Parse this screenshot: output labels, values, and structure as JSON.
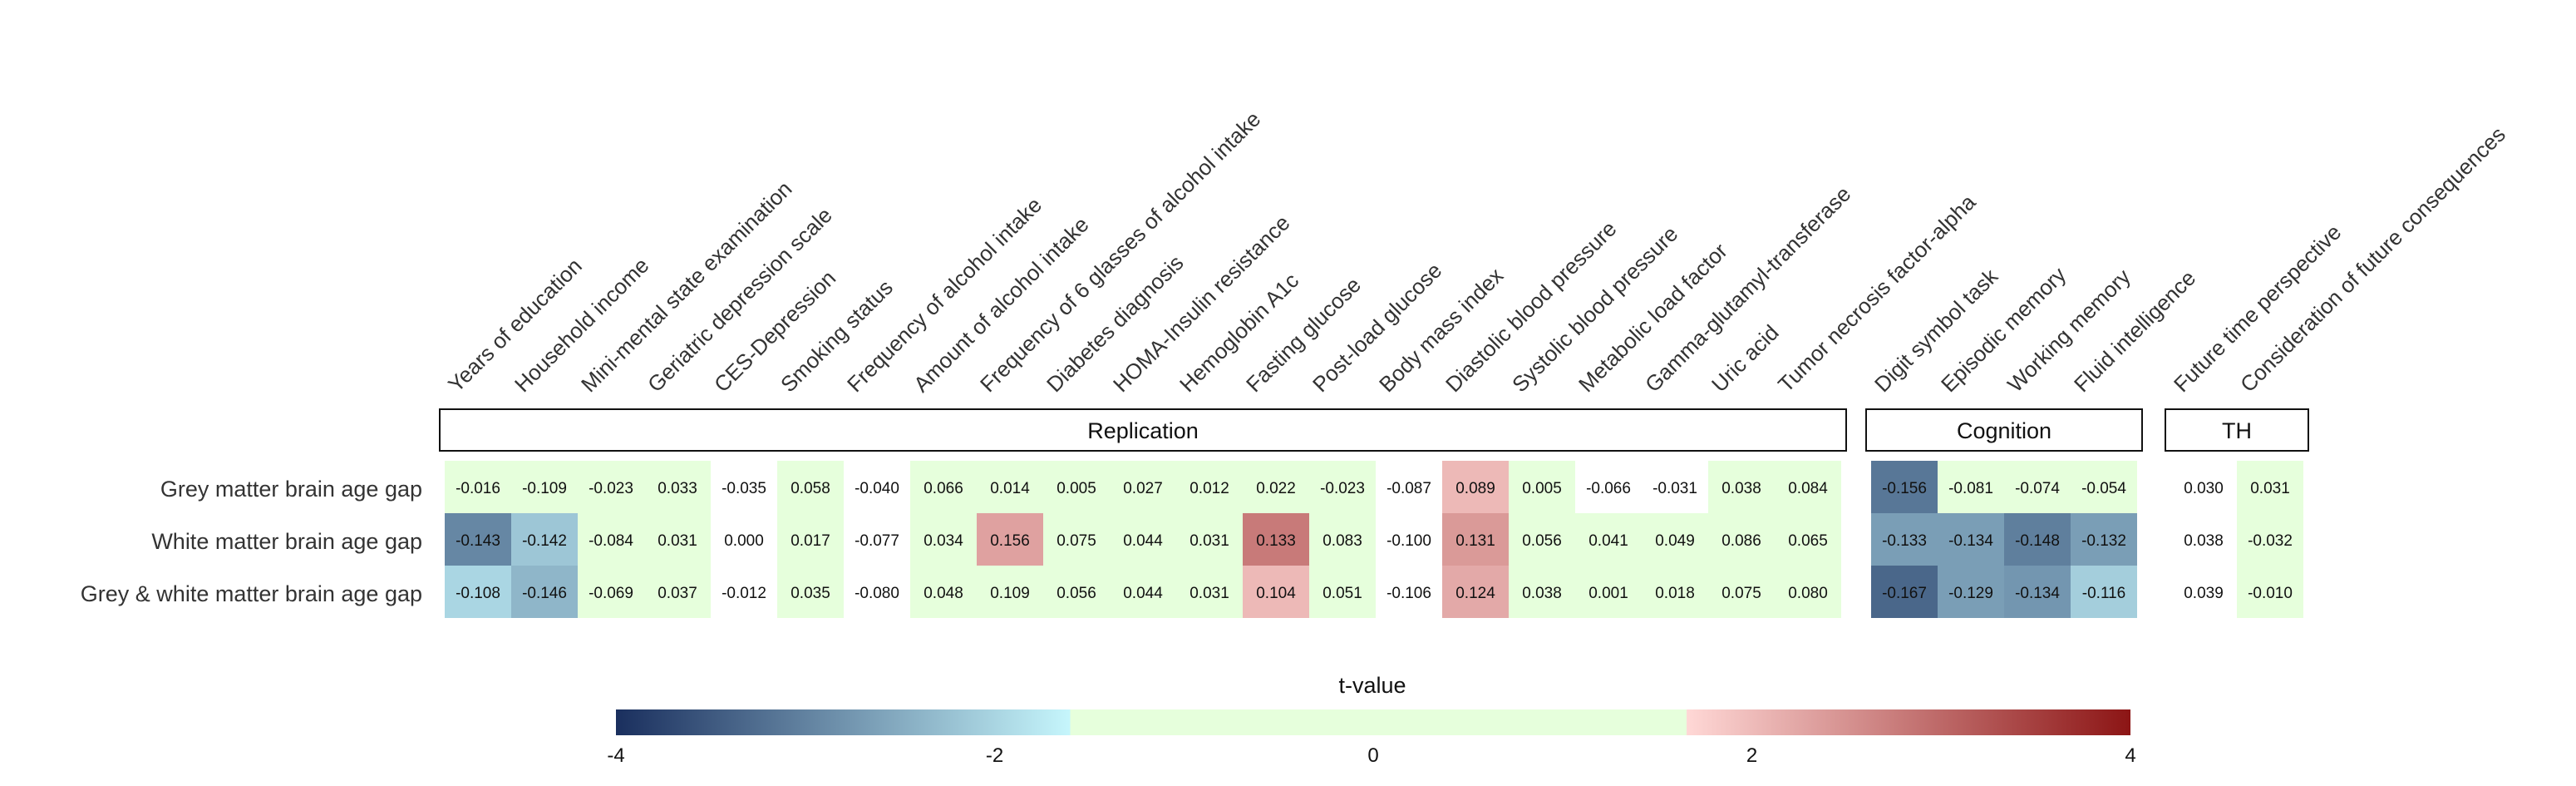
{
  "chart_data": {
    "type": "heatmap",
    "rows": [
      "Grey matter brain age gap",
      "White matter brain age gap",
      "Grey & white matter brain age gap"
    ],
    "groups": [
      {
        "name": "Replication",
        "columns": [
          "Years of education",
          "Household income",
          "Mini-mental state examination",
          "Geriatric depression scale",
          "CES-Depression",
          "Smoking status",
          "Frequency of alcohol intake",
          "Amount of alcohol intake",
          "Frequency of 6 glasses of alcohol intake",
          "Diabetes diagnosis",
          "HOMA-Insulin resistance",
          "Hemoglobin A1c",
          "Fasting glucose",
          "Post-load glucose",
          "Body mass index",
          "Diastolic blood pressure",
          "Systolic blood pressure",
          "Metabolic load factor",
          "Gamma-glutamyl-transferase",
          "Uric acid",
          "Tumor necrosis factor-alpha"
        ],
        "values": [
          [
            "-0.016",
            "-0.109",
            "-0.023",
            "0.033",
            "-0.035",
            "0.058",
            "-0.040",
            "0.066",
            "0.014",
            "0.005",
            "0.027",
            "0.012",
            "0.022",
            "-0.023",
            "-0.087",
            "0.089",
            "0.005",
            "-0.066",
            "-0.031",
            "0.038",
            "0.084"
          ],
          [
            "-0.143",
            "-0.142",
            "-0.084",
            "0.031",
            "0.000",
            "0.017",
            "-0.077",
            "0.034",
            "0.156",
            "0.075",
            "0.044",
            "0.031",
            "0.133",
            "0.083",
            "-0.100",
            "0.131",
            "0.056",
            "0.041",
            "0.049",
            "0.086",
            "0.065"
          ],
          [
            "-0.108",
            "-0.146",
            "-0.069",
            "0.037",
            "-0.012",
            "0.035",
            "-0.080",
            "0.048",
            "0.109",
            "0.056",
            "0.044",
            "0.031",
            "0.104",
            "0.051",
            "-0.106",
            "0.124",
            "0.038",
            "0.001",
            "0.018",
            "0.075",
            "0.080"
          ]
        ],
        "t_values": [
          [
            -0.5,
            -1.3,
            -0.5,
            1.0,
            0,
            1.4,
            0,
            1.5,
            0.5,
            0.5,
            1.0,
            0.5,
            1.0,
            0.5,
            0,
            1.9,
            0.5,
            0,
            0,
            1.0,
            1.4
          ],
          [
            -2.9,
            -2.1,
            -1.4,
            1.0,
            0,
            1.0,
            0,
            1.2,
            2.2,
            1.4,
            1.0,
            1.0,
            2.7,
            1.5,
            0,
            2.3,
            1.0,
            1.0,
            1.0,
            1.4,
            1.2
          ],
          [
            -1.9,
            -2.3,
            -1.4,
            1.0,
            0,
            1.0,
            0,
            1.2,
            1.5,
            1.2,
            1.0,
            1.0,
            1.9,
            1.0,
            0,
            2.1,
            1.0,
            1.0,
            1.0,
            1.3,
            1.3
          ]
        ]
      },
      {
        "name": "Cognition",
        "columns": [
          "Digit symbol task",
          "Episodic memory",
          "Working memory",
          "Fluid intelligence"
        ],
        "values": [
          [
            "-0.156",
            "-0.081",
            "-0.074",
            "-0.054"
          ],
          [
            "-0.133",
            "-0.134",
            "-0.148",
            "-0.132"
          ],
          [
            "-0.167",
            "-0.129",
            "-0.134",
            "-0.116"
          ]
        ],
        "t_values": [
          [
            -3.1,
            -1.2,
            -1.2,
            -1.0
          ],
          [
            -2.6,
            -2.6,
            -3.0,
            -2.6
          ],
          [
            -3.3,
            -2.6,
            -2.7,
            -2.0
          ]
        ]
      },
      {
        "name": "TH",
        "columns": [
          "Future time perspective",
          "Consideration of future consequences"
        ],
        "values": [
          [
            "0.030",
            "0.031"
          ],
          [
            "0.038",
            "-0.032"
          ],
          [
            "0.039",
            "-0.010"
          ]
        ],
        "t_values": [
          [
            0,
            1.0
          ],
          [
            0,
            1.0
          ],
          [
            0,
            1.0
          ]
        ]
      }
    ],
    "colorbar": {
      "title": "t-value",
      "ticks": [
        "-4",
        "-2",
        "0",
        "2",
        "4"
      ],
      "range": [
        -4,
        4
      ],
      "colors": {
        "neg_dark": "#1a2f5e",
        "neg_light": "#c6f6fc",
        "neutral": "#e6ffdc",
        "pos_light": "#ffd8d6",
        "pos_dark": "#8c1515"
      }
    }
  }
}
